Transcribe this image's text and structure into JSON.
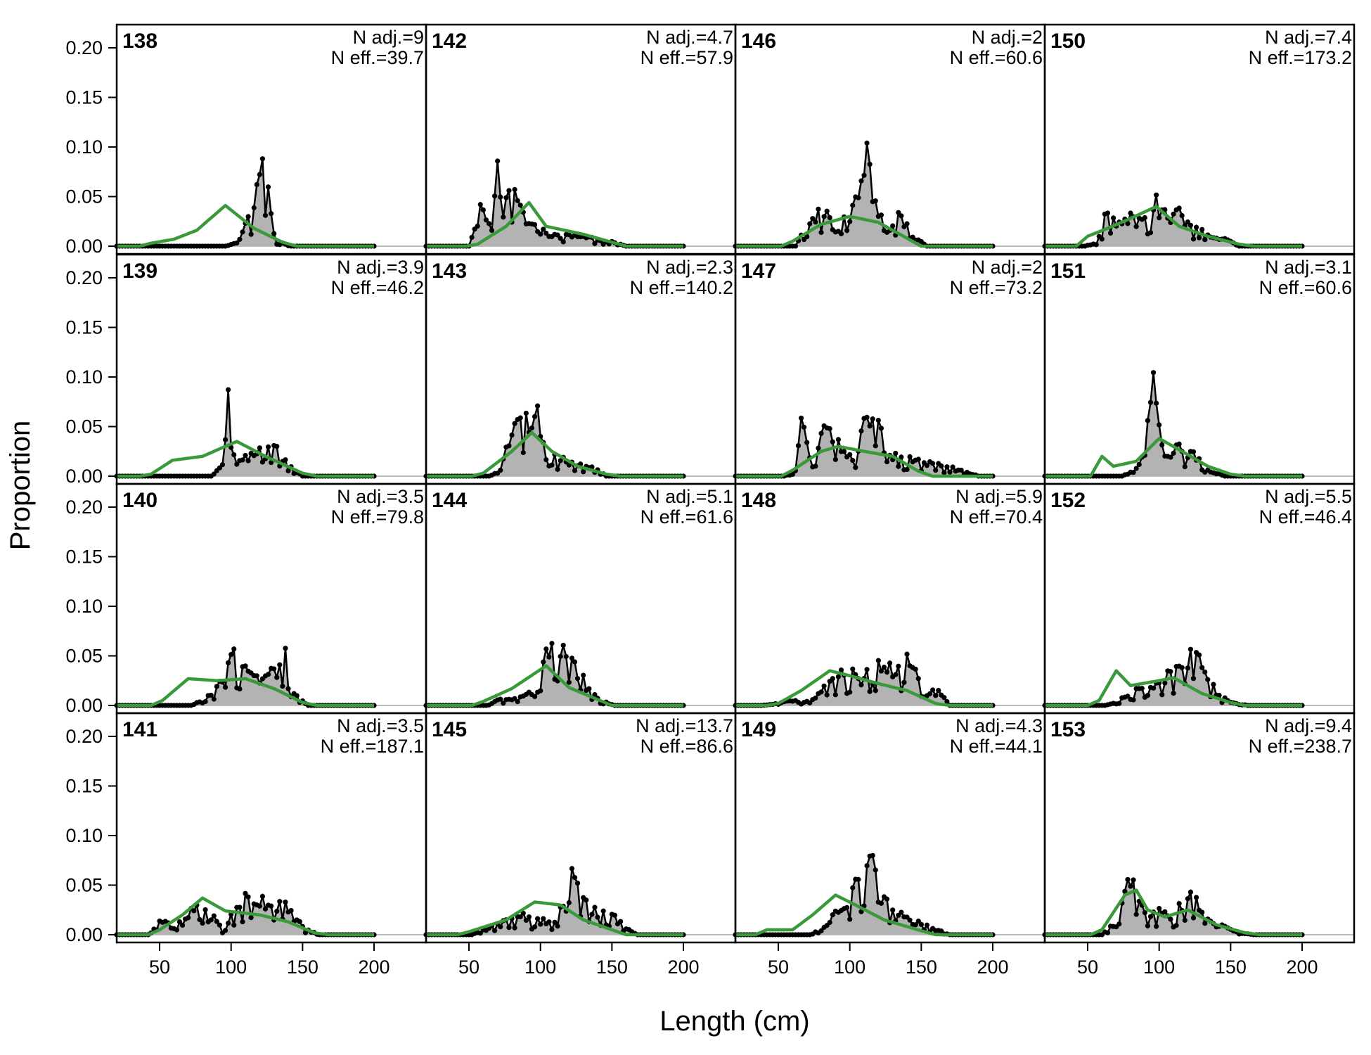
{
  "chart_data": {
    "type": "line",
    "xlabel": "Length (cm)",
    "ylabel": "Proportion",
    "x_ticks": [
      50,
      100,
      150,
      200
    ],
    "y_ticks": [
      "0.00",
      "0.05",
      "0.10",
      "0.15",
      "0.20"
    ],
    "xlim": [
      20,
      200
    ],
    "ylim": [
      0,
      0.22
    ],
    "bin_width": 2,
    "layout": "4 x 4 panels, column-major, shared axes",
    "colors": {
      "observed_line": "#000000",
      "observed_fill": "#b3b3b3",
      "expected_line": "#3a9a3a",
      "zero_line": "#bebebe",
      "frame": "#000000"
    },
    "series_styles": {
      "observed": "black line with points over grey fill",
      "expected": "green line"
    },
    "panels": [
      {
        "id": "138",
        "n_adj_text": "N adj.=9",
        "n_eff_text": "N eff.=39.7",
        "observed_peaks": [
          [
            104,
            0.003
          ],
          [
            110,
            0.02
          ],
          [
            116,
            0.04
          ],
          [
            120,
            0.06
          ],
          [
            122,
            0.089
          ],
          [
            126,
            0.06
          ],
          [
            132,
            0.005
          ]
        ],
        "expected_peaks": [
          [
            44,
            0.003
          ],
          [
            60,
            0.007
          ],
          [
            76,
            0.016
          ],
          [
            96,
            0.041
          ],
          [
            116,
            0.018
          ],
          [
            136,
            0.004
          ]
        ]
      },
      {
        "id": "139",
        "n_adj_text": "N adj.=3.9",
        "n_eff_text": "N eff.=46.2",
        "observed_peaks": [
          [
            94,
            0.01
          ],
          [
            97,
            0.12
          ],
          [
            100,
            0.03
          ],
          [
            104,
            0.015
          ],
          [
            118,
            0.02
          ],
          [
            124,
            0.04
          ],
          [
            132,
            0.025
          ],
          [
            140,
            0.01
          ]
        ],
        "expected_peaks": [
          [
            44,
            0.002
          ],
          [
            59,
            0.016
          ],
          [
            80,
            0.02
          ],
          [
            104,
            0.035
          ],
          [
            124,
            0.02
          ],
          [
            150,
            0.003
          ]
        ]
      },
      {
        "id": "140",
        "n_adj_text": "N adj.=3.5",
        "n_eff_text": "N eff.=79.8",
        "observed_peaks": [
          [
            80,
            0.005
          ],
          [
            92,
            0.02
          ],
          [
            100,
            0.055
          ],
          [
            108,
            0.045
          ],
          [
            120,
            0.025
          ],
          [
            132,
            0.035
          ],
          [
            139,
            0.048
          ],
          [
            144,
            0.01
          ]
        ],
        "expected_peaks": [
          [
            52,
            0.005
          ],
          [
            70,
            0.027
          ],
          [
            90,
            0.025
          ],
          [
            110,
            0.027
          ],
          [
            130,
            0.017
          ],
          [
            150,
            0.003
          ]
        ]
      },
      {
        "id": "141",
        "n_adj_text": "N adj.=3.5",
        "n_eff_text": "N eff.=187.1",
        "observed_peaks": [
          [
            50,
            0.015
          ],
          [
            66,
            0.01
          ],
          [
            78,
            0.033
          ],
          [
            86,
            0.02
          ],
          [
            94,
            0.005
          ],
          [
            108,
            0.035
          ],
          [
            120,
            0.035
          ],
          [
            136,
            0.03
          ],
          [
            152,
            0.005
          ]
        ],
        "expected_peaks": [
          [
            50,
            0.005
          ],
          [
            66,
            0.02
          ],
          [
            80,
            0.037
          ],
          [
            96,
            0.024
          ],
          [
            120,
            0.02
          ],
          [
            140,
            0.013
          ],
          [
            158,
            0.002
          ]
        ]
      },
      {
        "id": "142",
        "n_adj_text": "N adj.=4.7",
        "n_eff_text": "N eff.=57.9",
        "observed_peaks": [
          [
            58,
            0.035
          ],
          [
            66,
            0.015
          ],
          [
            70,
            0.074
          ],
          [
            74,
            0.035
          ],
          [
            80,
            0.05
          ],
          [
            84,
            0.044
          ],
          [
            92,
            0.02
          ],
          [
            110,
            0.01
          ],
          [
            130,
            0.01
          ],
          [
            150,
            0.004
          ]
        ],
        "expected_peaks": [
          [
            56,
            0.002
          ],
          [
            76,
            0.02
          ],
          [
            92,
            0.044
          ],
          [
            104,
            0.02
          ],
          [
            130,
            0.012
          ],
          [
            150,
            0.004
          ]
        ]
      },
      {
        "id": "143",
        "n_adj_text": "N adj.=2.3",
        "n_eff_text": "N eff.=140.2",
        "observed_peaks": [
          [
            72,
            0.005
          ],
          [
            80,
            0.045
          ],
          [
            88,
            0.065
          ],
          [
            94,
            0.087
          ],
          [
            100,
            0.045
          ],
          [
            108,
            0.02
          ],
          [
            126,
            0.01
          ],
          [
            136,
            0.01
          ]
        ],
        "expected_peaks": [
          [
            60,
            0.003
          ],
          [
            80,
            0.025
          ],
          [
            94,
            0.044
          ],
          [
            108,
            0.025
          ],
          [
            126,
            0.01
          ],
          [
            146,
            0.002
          ]
        ]
      },
      {
        "id": "144",
        "n_adj_text": "N adj.=5.1",
        "n_eff_text": "N eff.=61.6",
        "observed_peaks": [
          [
            70,
            0.005
          ],
          [
            90,
            0.01
          ],
          [
            100,
            0.035
          ],
          [
            108,
            0.07
          ],
          [
            112,
            0.072
          ],
          [
            120,
            0.045
          ],
          [
            126,
            0.035
          ],
          [
            134,
            0.015
          ],
          [
            142,
            0.005
          ]
        ],
        "expected_peaks": [
          [
            60,
            0.004
          ],
          [
            80,
            0.017
          ],
          [
            104,
            0.04
          ],
          [
            120,
            0.018
          ],
          [
            140,
            0.006
          ]
        ]
      },
      {
        "id": "145",
        "n_adj_text": "N adj.=13.7",
        "n_eff_text": "N eff.=86.6",
        "observed_peaks": [
          [
            60,
            0.004
          ],
          [
            80,
            0.015
          ],
          [
            86,
            0.02
          ],
          [
            98,
            0.015
          ],
          [
            108,
            0.01
          ],
          [
            116,
            0.03
          ],
          [
            120,
            0.061
          ],
          [
            126,
            0.045
          ],
          [
            140,
            0.02
          ],
          [
            150,
            0.02
          ],
          [
            158,
            0.008
          ]
        ],
        "expected_peaks": [
          [
            50,
            0.003
          ],
          [
            76,
            0.015
          ],
          [
            96,
            0.033
          ],
          [
            114,
            0.03
          ],
          [
            130,
            0.015
          ],
          [
            150,
            0.005
          ]
        ]
      },
      {
        "id": "146",
        "n_adj_text": "N adj.=2",
        "n_eff_text": "N eff.=60.6",
        "observed_peaks": [
          [
            70,
            0.02
          ],
          [
            76,
            0.03
          ],
          [
            82,
            0.032
          ],
          [
            88,
            0.03
          ],
          [
            94,
            0.03
          ],
          [
            100,
            0.03
          ],
          [
            106,
            0.05
          ],
          [
            110,
            0.06
          ],
          [
            112,
            0.09
          ],
          [
            116,
            0.045
          ],
          [
            122,
            0.035
          ],
          [
            128,
            0.02
          ],
          [
            136,
            0.03
          ],
          [
            144,
            0.01
          ]
        ],
        "expected_peaks": [
          [
            60,
            0.005
          ],
          [
            80,
            0.022
          ],
          [
            100,
            0.03
          ],
          [
            120,
            0.024
          ],
          [
            140,
            0.008
          ]
        ]
      },
      {
        "id": "147",
        "n_adj_text": "N adj.=2",
        "n_eff_text": "N eff.=73.2",
        "observed_peaks": [
          [
            62,
            0.005
          ],
          [
            66,
            0.063
          ],
          [
            72,
            0.015
          ],
          [
            80,
            0.04
          ],
          [
            84,
            0.045
          ],
          [
            90,
            0.035
          ],
          [
            96,
            0.02
          ],
          [
            104,
            0.02
          ],
          [
            114,
            0.065
          ],
          [
            118,
            0.06
          ],
          [
            124,
            0.03
          ],
          [
            130,
            0.02
          ],
          [
            180,
            0.005
          ]
        ],
        "expected_peaks": [
          [
            60,
            0.006
          ],
          [
            80,
            0.025
          ],
          [
            92,
            0.03
          ],
          [
            110,
            0.025
          ],
          [
            130,
            0.02
          ],
          [
            148,
            0.005
          ]
        ]
      },
      {
        "id": "148",
        "n_adj_text": "N adj.=5.9",
        "n_eff_text": "N eff.=70.4",
        "observed_peaks": [
          [
            46,
            0.001
          ],
          [
            60,
            0.005
          ],
          [
            72,
            0.003
          ],
          [
            92,
            0.03
          ],
          [
            102,
            0.03
          ],
          [
            108,
            0.018
          ],
          [
            116,
            0.042
          ],
          [
            124,
            0.038
          ],
          [
            132,
            0.038
          ],
          [
            140,
            0.043
          ],
          [
            148,
            0.025
          ],
          [
            160,
            0.02
          ]
        ],
        "expected_peaks": [
          [
            50,
            0.002
          ],
          [
            66,
            0.015
          ],
          [
            86,
            0.035
          ],
          [
            100,
            0.03
          ],
          [
            120,
            0.022
          ],
          [
            140,
            0.015
          ],
          [
            160,
            0.002
          ]
        ]
      },
      {
        "id": "149",
        "n_adj_text": "N adj.=4.3",
        "n_eff_text": "N eff.=44.1",
        "observed_peaks": [
          [
            80,
            0.005
          ],
          [
            94,
            0.025
          ],
          [
            100,
            0.035
          ],
          [
            108,
            0.06
          ],
          [
            112,
            0.068
          ],
          [
            116,
            0.07
          ],
          [
            120,
            0.04
          ],
          [
            128,
            0.03
          ],
          [
            140,
            0.015
          ],
          [
            160,
            0.005
          ]
        ],
        "expected_peaks": [
          [
            42,
            0.005
          ],
          [
            60,
            0.005
          ],
          [
            74,
            0.02
          ],
          [
            90,
            0.04
          ],
          [
            104,
            0.03
          ],
          [
            124,
            0.015
          ],
          [
            150,
            0.004
          ]
        ]
      },
      {
        "id": "150",
        "n_adj_text": "N adj.=7.4",
        "n_eff_text": "N eff.=173.2",
        "observed_peaks": [
          [
            56,
            0.003
          ],
          [
            62,
            0.03
          ],
          [
            70,
            0.025
          ],
          [
            78,
            0.03
          ],
          [
            86,
            0.025
          ],
          [
            94,
            0.04
          ],
          [
            98,
            0.042
          ],
          [
            104,
            0.03
          ],
          [
            114,
            0.032
          ],
          [
            124,
            0.02
          ],
          [
            134,
            0.01
          ],
          [
            146,
            0.007
          ]
        ],
        "expected_peaks": [
          [
            50,
            0.01
          ],
          [
            64,
            0.018
          ],
          [
            80,
            0.028
          ],
          [
            98,
            0.04
          ],
          [
            114,
            0.02
          ],
          [
            134,
            0.01
          ],
          [
            156,
            0.002
          ]
        ]
      },
      {
        "id": "151",
        "n_adj_text": "N adj.=3.1",
        "n_eff_text": "N eff.=60.6",
        "observed_peaks": [
          [
            82,
            0.005
          ],
          [
            90,
            0.02
          ],
          [
            96,
            0.1
          ],
          [
            100,
            0.06
          ],
          [
            104,
            0.02
          ],
          [
            112,
            0.03
          ],
          [
            120,
            0.022
          ],
          [
            126,
            0.02
          ],
          [
            136,
            0.005
          ]
        ],
        "expected_peaks": [
          [
            60,
            0.02
          ],
          [
            68,
            0.01
          ],
          [
            84,
            0.015
          ],
          [
            100,
            0.038
          ],
          [
            116,
            0.025
          ],
          [
            134,
            0.01
          ],
          [
            150,
            0.002
          ]
        ]
      },
      {
        "id": "152",
        "n_adj_text": "N adj.=5.5",
        "n_eff_text": "N eff.=46.4",
        "observed_peaks": [
          [
            70,
            0.003
          ],
          [
            84,
            0.015
          ],
          [
            92,
            0.02
          ],
          [
            100,
            0.025
          ],
          [
            110,
            0.03
          ],
          [
            116,
            0.045
          ],
          [
            122,
            0.05
          ],
          [
            126,
            0.065
          ],
          [
            132,
            0.04
          ],
          [
            140,
            0.01
          ],
          [
            152,
            0.003
          ]
        ],
        "expected_peaks": [
          [
            58,
            0.005
          ],
          [
            64,
            0.02
          ],
          [
            70,
            0.035
          ],
          [
            80,
            0.02
          ],
          [
            100,
            0.025
          ],
          [
            110,
            0.028
          ],
          [
            130,
            0.012
          ],
          [
            150,
            0.003
          ]
        ]
      },
      {
        "id": "153",
        "n_adj_text": "N adj.=9.4",
        "n_eff_text": "N eff.=238.7",
        "observed_peaks": [
          [
            68,
            0.01
          ],
          [
            76,
            0.045
          ],
          [
            80,
            0.052
          ],
          [
            86,
            0.035
          ],
          [
            92,
            0.018
          ],
          [
            100,
            0.025
          ],
          [
            108,
            0.018
          ],
          [
            118,
            0.035
          ],
          [
            122,
            0.042
          ],
          [
            130,
            0.025
          ],
          [
            140,
            0.01
          ],
          [
            156,
            0.002
          ]
        ],
        "expected_peaks": [
          [
            60,
            0.005
          ],
          [
            76,
            0.04
          ],
          [
            84,
            0.045
          ],
          [
            92,
            0.025
          ],
          [
            104,
            0.018
          ],
          [
            120,
            0.025
          ],
          [
            140,
            0.01
          ],
          [
            160,
            0.002
          ]
        ]
      }
    ]
  }
}
